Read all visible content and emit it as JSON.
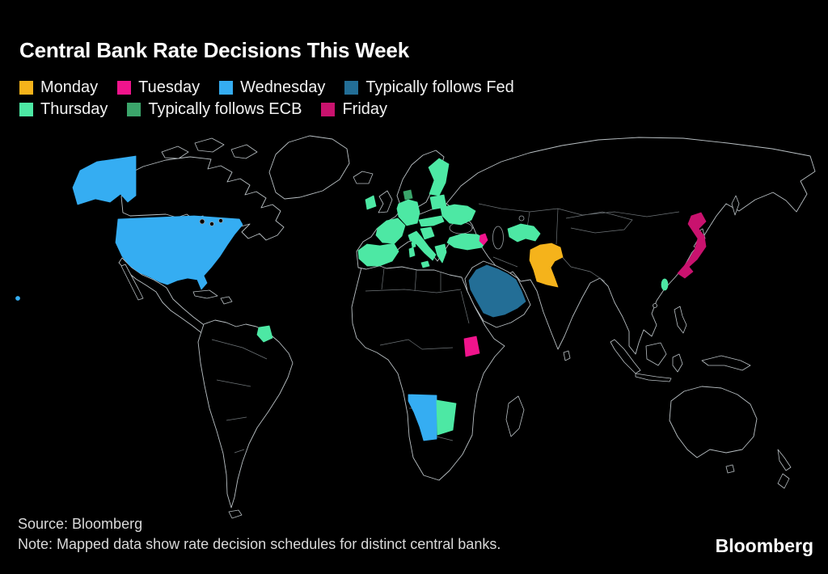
{
  "header": {
    "title": "Central Bank Rate Decisions This Week"
  },
  "legend": {
    "rows": [
      [
        "Monday",
        "Tuesday",
        "Wednesday",
        "Typically follows Fed"
      ],
      [
        "Thursday",
        "Typically follows ECB",
        "Friday"
      ]
    ]
  },
  "chart_data": {
    "type": "choropleth_world_map",
    "title": "Central Bank Rate Decisions This Week",
    "background": "#000000",
    "outline_color": "#b9c0c4",
    "legend_position": "top-left",
    "categories": [
      {
        "label": "Monday",
        "color": "#F5B31B"
      },
      {
        "label": "Tuesday",
        "color": "#F0148C"
      },
      {
        "label": "Wednesday",
        "color": "#35ADF2"
      },
      {
        "label": "Typically follows Fed",
        "color": "#236E96"
      },
      {
        "label": "Thursday",
        "color": "#4DE8A4"
      },
      {
        "label": "Typically follows ECB",
        "color": "#3BA56B"
      },
      {
        "label": "Friday",
        "color": "#C9126E"
      }
    ],
    "regions": [
      {
        "name": "United States",
        "category": "Wednesday"
      },
      {
        "name": "Namibia",
        "category": "Wednesday"
      },
      {
        "name": "Pakistan",
        "category": "Monday"
      },
      {
        "name": "Uganda",
        "category": "Tuesday"
      },
      {
        "name": "Armenia",
        "category": "Tuesday"
      },
      {
        "name": "Eurozone",
        "category": "Thursday"
      },
      {
        "name": "Ukraine",
        "category": "Thursday"
      },
      {
        "name": "Turkey",
        "category": "Thursday"
      },
      {
        "name": "Uzbekistan",
        "category": "Thursday"
      },
      {
        "name": "Taiwan",
        "category": "Thursday"
      },
      {
        "name": "Botswana",
        "category": "Thursday"
      },
      {
        "name": "French Guiana",
        "category": "Thursday"
      },
      {
        "name": "Saudi Arabia",
        "category": "Typically follows Fed"
      },
      {
        "name": "Denmark",
        "category": "Typically follows ECB"
      },
      {
        "name": "Japan",
        "category": "Friday"
      }
    ]
  },
  "footer": {
    "source": "Source: Bloomberg",
    "note": "Note: Mapped data show rate decision schedules for distinct central banks.",
    "brand": "Bloomberg"
  }
}
